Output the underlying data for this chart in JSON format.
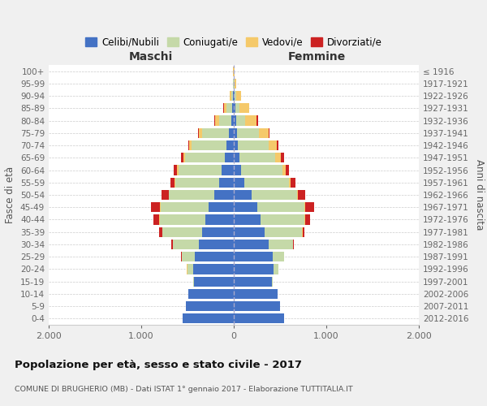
{
  "age_groups": [
    "0-4",
    "5-9",
    "10-14",
    "15-19",
    "20-24",
    "25-29",
    "30-34",
    "35-39",
    "40-44",
    "45-49",
    "50-54",
    "55-59",
    "60-64",
    "65-69",
    "70-74",
    "75-79",
    "80-84",
    "85-89",
    "90-94",
    "95-99",
    "100+"
  ],
  "birth_years": [
    "2012-2016",
    "2007-2011",
    "2002-2006",
    "1997-2001",
    "1992-1996",
    "1987-1991",
    "1982-1986",
    "1977-1981",
    "1972-1976",
    "1967-1971",
    "1962-1966",
    "1957-1961",
    "1952-1956",
    "1947-1951",
    "1942-1946",
    "1937-1941",
    "1932-1936",
    "1927-1931",
    "1922-1926",
    "1917-1921",
    "≤ 1916"
  ],
  "male_celibi": [
    550,
    520,
    490,
    430,
    440,
    420,
    380,
    340,
    310,
    270,
    210,
    155,
    130,
    100,
    75,
    55,
    30,
    15,
    8,
    3,
    2
  ],
  "male_coniugati": [
    0,
    0,
    5,
    10,
    60,
    140,
    280,
    430,
    490,
    520,
    490,
    480,
    470,
    430,
    380,
    290,
    130,
    60,
    20,
    5,
    2
  ],
  "male_vedovi": [
    0,
    0,
    0,
    0,
    5,
    5,
    2,
    5,
    5,
    5,
    5,
    5,
    10,
    15,
    25,
    30,
    40,
    30,
    15,
    3,
    1
  ],
  "male_divorziati": [
    0,
    0,
    0,
    0,
    2,
    5,
    10,
    30,
    60,
    100,
    75,
    40,
    35,
    25,
    15,
    10,
    8,
    5,
    0,
    0,
    0
  ],
  "female_celibi": [
    540,
    500,
    470,
    410,
    430,
    420,
    380,
    330,
    290,
    250,
    190,
    115,
    80,
    60,
    45,
    35,
    25,
    15,
    10,
    3,
    1
  ],
  "female_coniugati": [
    0,
    0,
    5,
    10,
    50,
    120,
    260,
    410,
    470,
    510,
    490,
    480,
    450,
    390,
    330,
    240,
    100,
    50,
    15,
    5,
    2
  ],
  "female_vedovi": [
    0,
    0,
    0,
    0,
    2,
    2,
    3,
    5,
    8,
    10,
    15,
    20,
    30,
    60,
    90,
    100,
    120,
    100,
    50,
    15,
    3
  ],
  "female_divorziati": [
    0,
    0,
    0,
    0,
    2,
    5,
    10,
    20,
    60,
    100,
    80,
    50,
    40,
    30,
    20,
    15,
    15,
    5,
    2,
    0,
    0
  ],
  "colors": {
    "celibi": "#4472c4",
    "coniugati": "#c5d9a8",
    "vedovi": "#f5c96a",
    "divorziati": "#cc2222"
  },
  "title": "Popolazione per età, sesso e stato civile - 2017",
  "subtitle": "COMUNE DI BRUGHERIO (MB) - Dati ISTAT 1° gennaio 2017 - Elaborazione TUTTITALIA.IT",
  "xlabel_left": "Maschi",
  "xlabel_right": "Femmine",
  "ylabel_left": "Fasce di età",
  "ylabel_right": "Anni di nascita",
  "xlim": 2000,
  "background_color": "#f0f0f0",
  "plot_bg": "#ffffff",
  "legend_labels": [
    "Celibi/Nubili",
    "Coniugati/e",
    "Vedovi/e",
    "Divorziati/e"
  ]
}
